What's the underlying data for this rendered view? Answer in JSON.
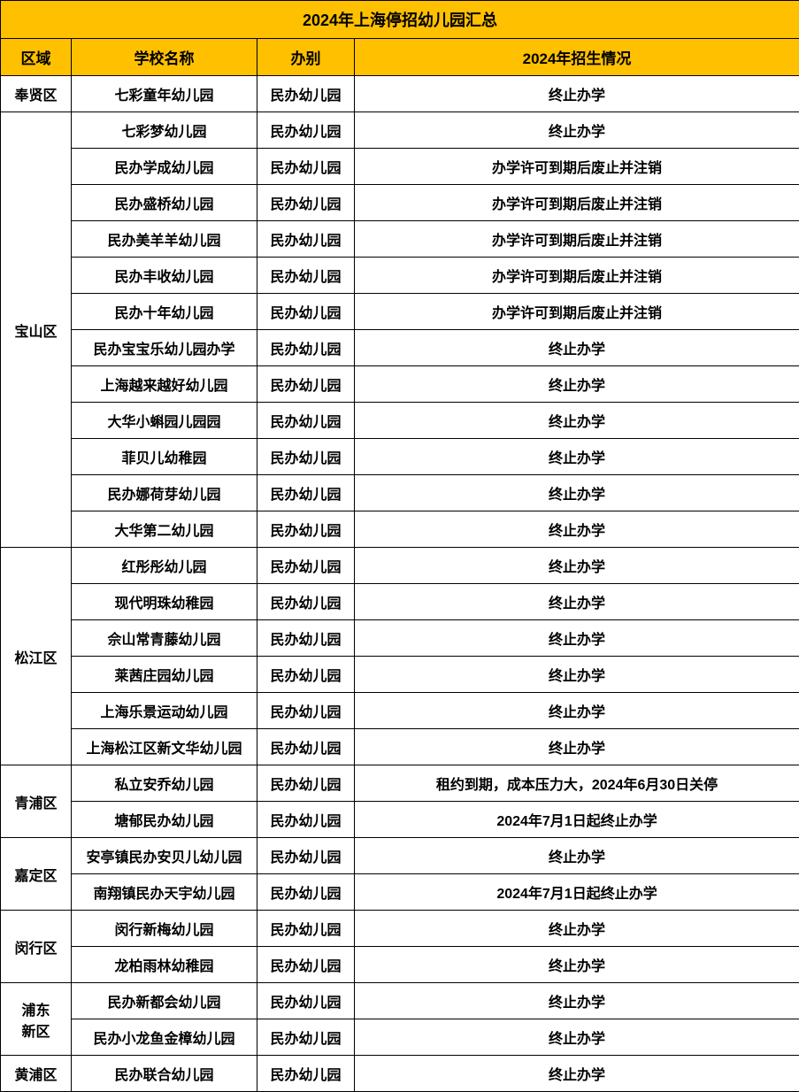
{
  "title": "2024年上海停招幼儿园汇总",
  "headers": {
    "region": "区域",
    "school": "学校名称",
    "type": "办别",
    "status": "2024年招生情况"
  },
  "colors": {
    "header_bg": "#ffc000",
    "border": "#000000",
    "text": "#000000",
    "row_bg": "#ffffff"
  },
  "column_widths": {
    "region": 80,
    "school": 210,
    "type": 110,
    "status": 503
  },
  "typography": {
    "title_fontsize": 18,
    "header_fontsize": 17,
    "cell_fontsize": 16,
    "font_weight": "bold",
    "font_family": "Microsoft YaHei"
  },
  "regions": [
    {
      "name": "奉贤区",
      "rowspan": 1,
      "schools": [
        {
          "name": "七彩童年幼儿园",
          "type": "民办幼儿园",
          "status": "终止办学"
        }
      ]
    },
    {
      "name": "宝山区",
      "rowspan": 12,
      "schools": [
        {
          "name": "七彩梦幼儿园",
          "type": "民办幼儿园",
          "status": "终止办学"
        },
        {
          "name": "民办学成幼儿园",
          "type": "民办幼儿园",
          "status": "办学许可到期后废止并注销"
        },
        {
          "name": "民办盛桥幼儿园",
          "type": "民办幼儿园",
          "status": "办学许可到期后废止并注销"
        },
        {
          "name": "民办美羊羊幼儿园",
          "type": "民办幼儿园",
          "status": "办学许可到期后废止并注销"
        },
        {
          "name": "民办丰收幼儿园",
          "type": "民办幼儿园",
          "status": "办学许可到期后废止并注销"
        },
        {
          "name": "民办十年幼儿园",
          "type": "民办幼儿园",
          "status": "办学许可到期后废止并注销"
        },
        {
          "name": "民办宝宝乐幼儿园办学",
          "type": "民办幼儿园",
          "status": "终止办学"
        },
        {
          "name": "上海越来越好幼儿园",
          "type": "民办幼儿园",
          "status": "终止办学"
        },
        {
          "name": "大华小蝌园儿园园",
          "type": "民办幼儿园",
          "status": "终止办学"
        },
        {
          "name": "菲贝儿幼稚园",
          "type": "民办幼儿园",
          "status": "终止办学"
        },
        {
          "name": "民办娜荷芽幼儿园",
          "type": "民办幼儿园",
          "status": "终止办学"
        },
        {
          "name": "大华第二幼儿园",
          "type": "民办幼儿园",
          "status": "终止办学"
        }
      ]
    },
    {
      "name": "松江区",
      "rowspan": 6,
      "schools": [
        {
          "name": "红彤彤幼儿园",
          "type": "民办幼儿园",
          "status": "终止办学"
        },
        {
          "name": "现代明珠幼稚园",
          "type": "民办幼儿园",
          "status": "终止办学"
        },
        {
          "name": "佘山常青藤幼儿园",
          "type": "民办幼儿园",
          "status": "终止办学"
        },
        {
          "name": "莱茜庄园幼儿园",
          "type": "民办幼儿园",
          "status": "终止办学"
        },
        {
          "name": "上海乐景运动幼儿园",
          "type": "民办幼儿园",
          "status": "终止办学"
        },
        {
          "name": "上海松江区新文华幼儿园",
          "type": "民办幼儿园",
          "status": "终止办学"
        }
      ]
    },
    {
      "name": "青浦区",
      "rowspan": 2,
      "schools": [
        {
          "name": "私立安乔幼儿园",
          "type": "民办幼儿园",
          "status": "租约到期，成本压力大，2024年6月30日关停"
        },
        {
          "name": "塘郁民办幼儿园",
          "type": "民办幼儿园",
          "status": "2024年7月1日起终止办学"
        }
      ]
    },
    {
      "name": "嘉定区",
      "rowspan": 2,
      "schools": [
        {
          "name": "安亭镇民办安贝儿幼儿园",
          "type": "民办幼儿园",
          "status": "终止办学"
        },
        {
          "name": "南翔镇民办天宇幼儿园",
          "type": "民办幼儿园",
          "status": "2024年7月1日起终止办学"
        }
      ]
    },
    {
      "name": "闵行区",
      "rowspan": 2,
      "schools": [
        {
          "name": "闵行新梅幼儿园",
          "type": "民办幼儿园",
          "status": "终止办学"
        },
        {
          "name": "龙柏雨林幼稚园",
          "type": "民办幼儿园",
          "status": "终止办学"
        }
      ]
    },
    {
      "name": "浦东新区",
      "rowspan": 2,
      "schools": [
        {
          "name": "民办新都会幼儿园",
          "type": "民办幼儿园",
          "status": "终止办学"
        },
        {
          "name": "民办小龙鱼金樟幼儿园",
          "type": "民办幼儿园",
          "status": "终止办学"
        }
      ]
    },
    {
      "name": "黄浦区",
      "rowspan": 1,
      "schools": [
        {
          "name": "民办联合幼儿园",
          "type": "民办幼儿园",
          "status": "终止办学"
        }
      ]
    }
  ]
}
